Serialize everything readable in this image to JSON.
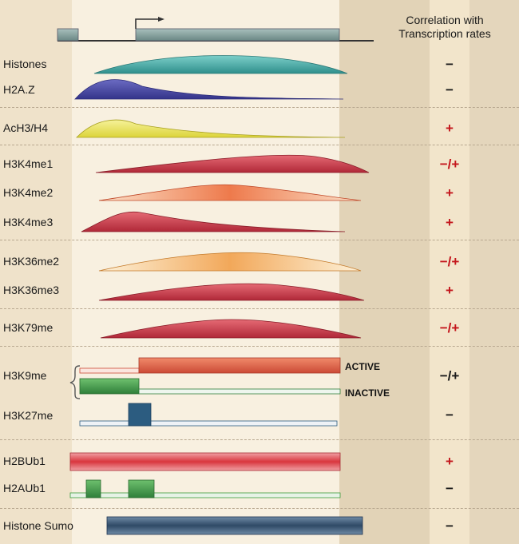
{
  "header": {
    "correlation_title_line1": "Correlation with",
    "correlation_title_line2": "Transcription rates"
  },
  "rows": [
    {
      "label": "Histones",
      "correlation": "−"
    },
    {
      "label": "H2A.Z",
      "correlation": "−"
    },
    {
      "label": "AcH3/H4",
      "correlation": "+"
    },
    {
      "label": "H3K4me1",
      "correlation": "−/+"
    },
    {
      "label": "H3K4me2",
      "correlation": "+"
    },
    {
      "label": "H3K4me3",
      "correlation": "+"
    },
    {
      "label": "H3K36me2",
      "correlation": "−/+"
    },
    {
      "label": "H3K36me3",
      "correlation": "+"
    },
    {
      "label": "H3K79me",
      "correlation": "−/+"
    },
    {
      "label": "H3K9me",
      "correlation": "−/+"
    },
    {
      "label": "H3K27me",
      "correlation": "−"
    },
    {
      "label": "H2BUb1",
      "correlation": "+"
    },
    {
      "label": "H2AUb1",
      "correlation": "−"
    },
    {
      "label": "Histone Sumo",
      "correlation": "−"
    }
  ],
  "h3k9me_states": {
    "active_label": "ACTIVE",
    "inactive_label": "INACTIVE"
  },
  "colors": {
    "positive": "#c4161c",
    "negative": "#1a1a1a",
    "histones": "#3fa6a3",
    "h2az": "#4a4aa0",
    "acetyl": "#e8e24a",
    "h3k4me1": "#cc3d4a",
    "h3k4me2": "#f08a5a",
    "h3k4me3": "#c9344a",
    "h3k36me2": "#f2b36a",
    "h3k36me3": "#cc3d4a",
    "h3k79me": "#cc3d4a",
    "h3k9me_active": "#e06a4a",
    "h3k9me_inactive": "#3d8a4a",
    "h3k27me": "#2c5c80",
    "h2bub1": "#d9363e",
    "h2aub1": "#3a9a3a",
    "sumo": "#3a5a78",
    "gene": "#7f9a97"
  }
}
